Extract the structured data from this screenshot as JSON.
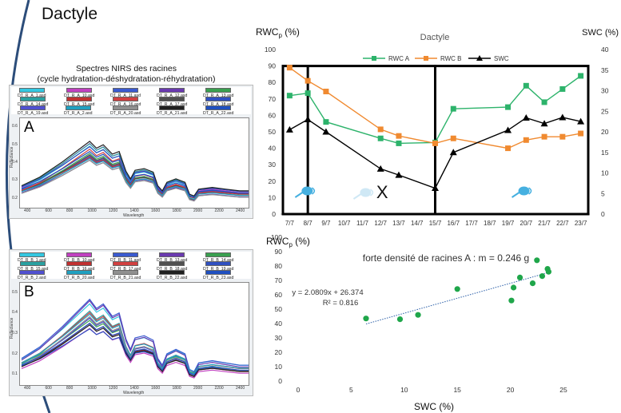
{
  "slide_title": "Dactyle",
  "nirs_caption_line1": "Spectres NIRS des racines",
  "nirs_caption_line2": "(cycle hydratation-déshydratation-réhydratation)",
  "nirs_panels": [
    {
      "label": "A",
      "legend": [
        {
          "name": "DT_R_A_1.asd",
          "color": "#34c7e0"
        },
        {
          "name": "DT_R_A_10.asd",
          "color": "#c040c0"
        },
        {
          "name": "DT_R_A_11.asd",
          "color": "#3a5ad0"
        },
        {
          "name": "DT_R_A_12.asd",
          "color": "#6a3ab0"
        },
        {
          "name": "DT_R_A_13.asd",
          "color": "#3aa050"
        },
        {
          "name": "DT_R_A_14.asd",
          "color": "#2aa0a0"
        },
        {
          "name": "DT_R_A_15.asd",
          "color": "#c03030"
        },
        {
          "name": "DT_R_A_16.asd",
          "color": "#d04040"
        },
        {
          "name": "DT_R_A_17.asd",
          "color": "#505050"
        },
        {
          "name": "DT_R_A_18.asd",
          "color": "#3050c0"
        },
        {
          "name": "DT_R_A_19.asd",
          "color": "#5050d0"
        },
        {
          "name": "DT_R_A_2.asd",
          "color": "#20a0c0"
        },
        {
          "name": "DT_R_A_20.asd",
          "color": "#909090"
        },
        {
          "name": "DT_R_A_21.asd",
          "color": "#202020"
        },
        {
          "name": "DT_R_A_22.asd",
          "color": "#2050c0"
        }
      ],
      "y_ticks": [
        "0.2",
        "0.3",
        "0.4",
        "0.5",
        "0.6"
      ],
      "x_ticks": [
        "400",
        "600",
        "800",
        "1000",
        "1200",
        "1400",
        "1600",
        "1800",
        "2000",
        "2200",
        "2400"
      ],
      "ylabel": "Reflectance",
      "xlabel": "Wavelength"
    },
    {
      "label": "B",
      "legend": [
        {
          "name": "DT_R_B_1.asd",
          "color": "#34c7e0"
        },
        {
          "name": "DT_R_B_10.asd",
          "color": "#c040c0"
        },
        {
          "name": "DT_R_B_11.asd",
          "color": "#3a5ad0"
        },
        {
          "name": "DT_R_B_13.asd",
          "color": "#6a3ab0"
        },
        {
          "name": "DT_R_B_14.asd",
          "color": "#3aa050"
        },
        {
          "name": "DT_R_B_15.asd",
          "color": "#2aa0a0"
        },
        {
          "name": "DT_R_B_16.asd",
          "color": "#c03030"
        },
        {
          "name": "DT_R_B_17.asd",
          "color": "#d04040"
        },
        {
          "name": "DT_R_B_18.asd",
          "color": "#505050"
        },
        {
          "name": "DT_R_B_19.asd",
          "color": "#3050c0"
        },
        {
          "name": "DT_R_B_2.asd",
          "color": "#5050d0"
        },
        {
          "name": "DT_R_B_20.asd",
          "color": "#20a0c0"
        },
        {
          "name": "DT_R_B_21.asd",
          "color": "#909090"
        },
        {
          "name": "DT_R_B_22.asd",
          "color": "#202020"
        },
        {
          "name": "DT_R_B_23.asd",
          "color": "#2050c0"
        }
      ],
      "y_ticks": [
        "0.1",
        "0.2",
        "0.3",
        "0.4",
        "0.5"
      ],
      "x_ticks": [
        "400",
        "600",
        "800",
        "1000",
        "1200",
        "1400",
        "1600",
        "1800",
        "2000",
        "2200",
        "2400"
      ],
      "ylabel": "Reflectance",
      "xlabel": "Wavelength"
    }
  ],
  "chart_data": [
    {
      "type": "line",
      "title": "Dactyle",
      "ylabel": "RWC",
      "ylabel_sub": "p",
      "ylabel_unit": " (%)",
      "y2label": "SWC (%)",
      "categories": [
        "7/7",
        "8/7",
        "9/7",
        "10/7",
        "11/7",
        "12/7",
        "13/7",
        "14/7",
        "15/7",
        "16/7",
        "17/7",
        "18/7",
        "19/7",
        "20/7",
        "21/7",
        "22/7",
        "23/7"
      ],
      "ylim": [
        0,
        100
      ],
      "y2lim": [
        0,
        40
      ],
      "y_ticks": [
        0,
        10,
        20,
        30,
        40,
        50,
        60,
        70,
        80,
        90,
        100
      ],
      "y2_ticks": [
        0,
        5,
        10,
        15,
        20,
        25,
        30,
        35,
        40
      ],
      "legend_position": "top",
      "series": [
        {
          "name": "RWC A",
          "axis": "left",
          "color": "#2db36b",
          "marker": "square",
          "points": [
            [
              0,
              72
            ],
            [
              1,
              73.5
            ],
            [
              2,
              56
            ],
            [
              5,
              46
            ],
            [
              6,
              43
            ],
            [
              8,
              43.5
            ],
            [
              9,
              64
            ],
            [
              12,
              65
            ],
            [
              13,
              78
            ],
            [
              14,
              68
            ],
            [
              15,
              76
            ],
            [
              16,
              84
            ]
          ]
        },
        {
          "name": "RWC B",
          "axis": "left",
          "color": "#f08a30",
          "marker": "square",
          "points": [
            [
              0,
              89
            ],
            [
              1,
              81
            ],
            [
              2,
              74.5
            ],
            [
              5,
              51.5
            ],
            [
              6,
              47.5
            ],
            [
              8,
              43
            ],
            [
              9,
              46
            ],
            [
              12,
              40
            ],
            [
              13,
              45
            ],
            [
              14,
              47
            ],
            [
              15,
              47
            ],
            [
              16,
              49
            ]
          ]
        },
        {
          "name": "SWC",
          "axis": "right",
          "color": "#000000",
          "marker": "triangle",
          "points": [
            [
              0,
              20.5
            ],
            [
              1,
              23
            ],
            [
              2,
              20
            ],
            [
              5,
              11
            ],
            [
              6,
              9.5
            ],
            [
              8,
              6.3
            ],
            [
              9,
              15
            ],
            [
              12,
              20.4
            ],
            [
              13,
              23.4
            ],
            [
              14,
              22
            ],
            [
              15,
              23.5
            ],
            [
              16,
              22.5
            ]
          ]
        }
      ],
      "annotation_text": "X"
    },
    {
      "type": "scatter",
      "title": "forte densité de racines A : m = 0.246 g",
      "ylabel": "RWC",
      "ylabel_sub": "p",
      "ylabel_unit": " (%)",
      "xlabel": "SWC (%)",
      "xlim": [
        0,
        25
      ],
      "ylim": [
        0,
        100
      ],
      "x_ticks": [
        0,
        5,
        10,
        15,
        20,
        25
      ],
      "y_ticks": [
        0,
        10,
        20,
        30,
        40,
        50,
        60,
        70,
        80,
        90,
        100
      ],
      "color": "#1fa64a",
      "points": [
        [
          6.4,
          43.5
        ],
        [
          9.6,
          43
        ],
        [
          11.3,
          46
        ],
        [
          15,
          64
        ],
        [
          20.1,
          56
        ],
        [
          20.3,
          65
        ],
        [
          20.9,
          72
        ],
        [
          22.1,
          68
        ],
        [
          22.5,
          84
        ],
        [
          23,
          73
        ],
        [
          23.5,
          78
        ],
        [
          23.6,
          76
        ]
      ],
      "trendline": {
        "slope": 2.0809,
        "intercept": 26.374,
        "x_range": [
          6.4,
          23.6
        ],
        "color": "#2b5fa8"
      },
      "equation": "y = 2.0809x + 26.374",
      "r2": "R² = 0.816"
    }
  ]
}
